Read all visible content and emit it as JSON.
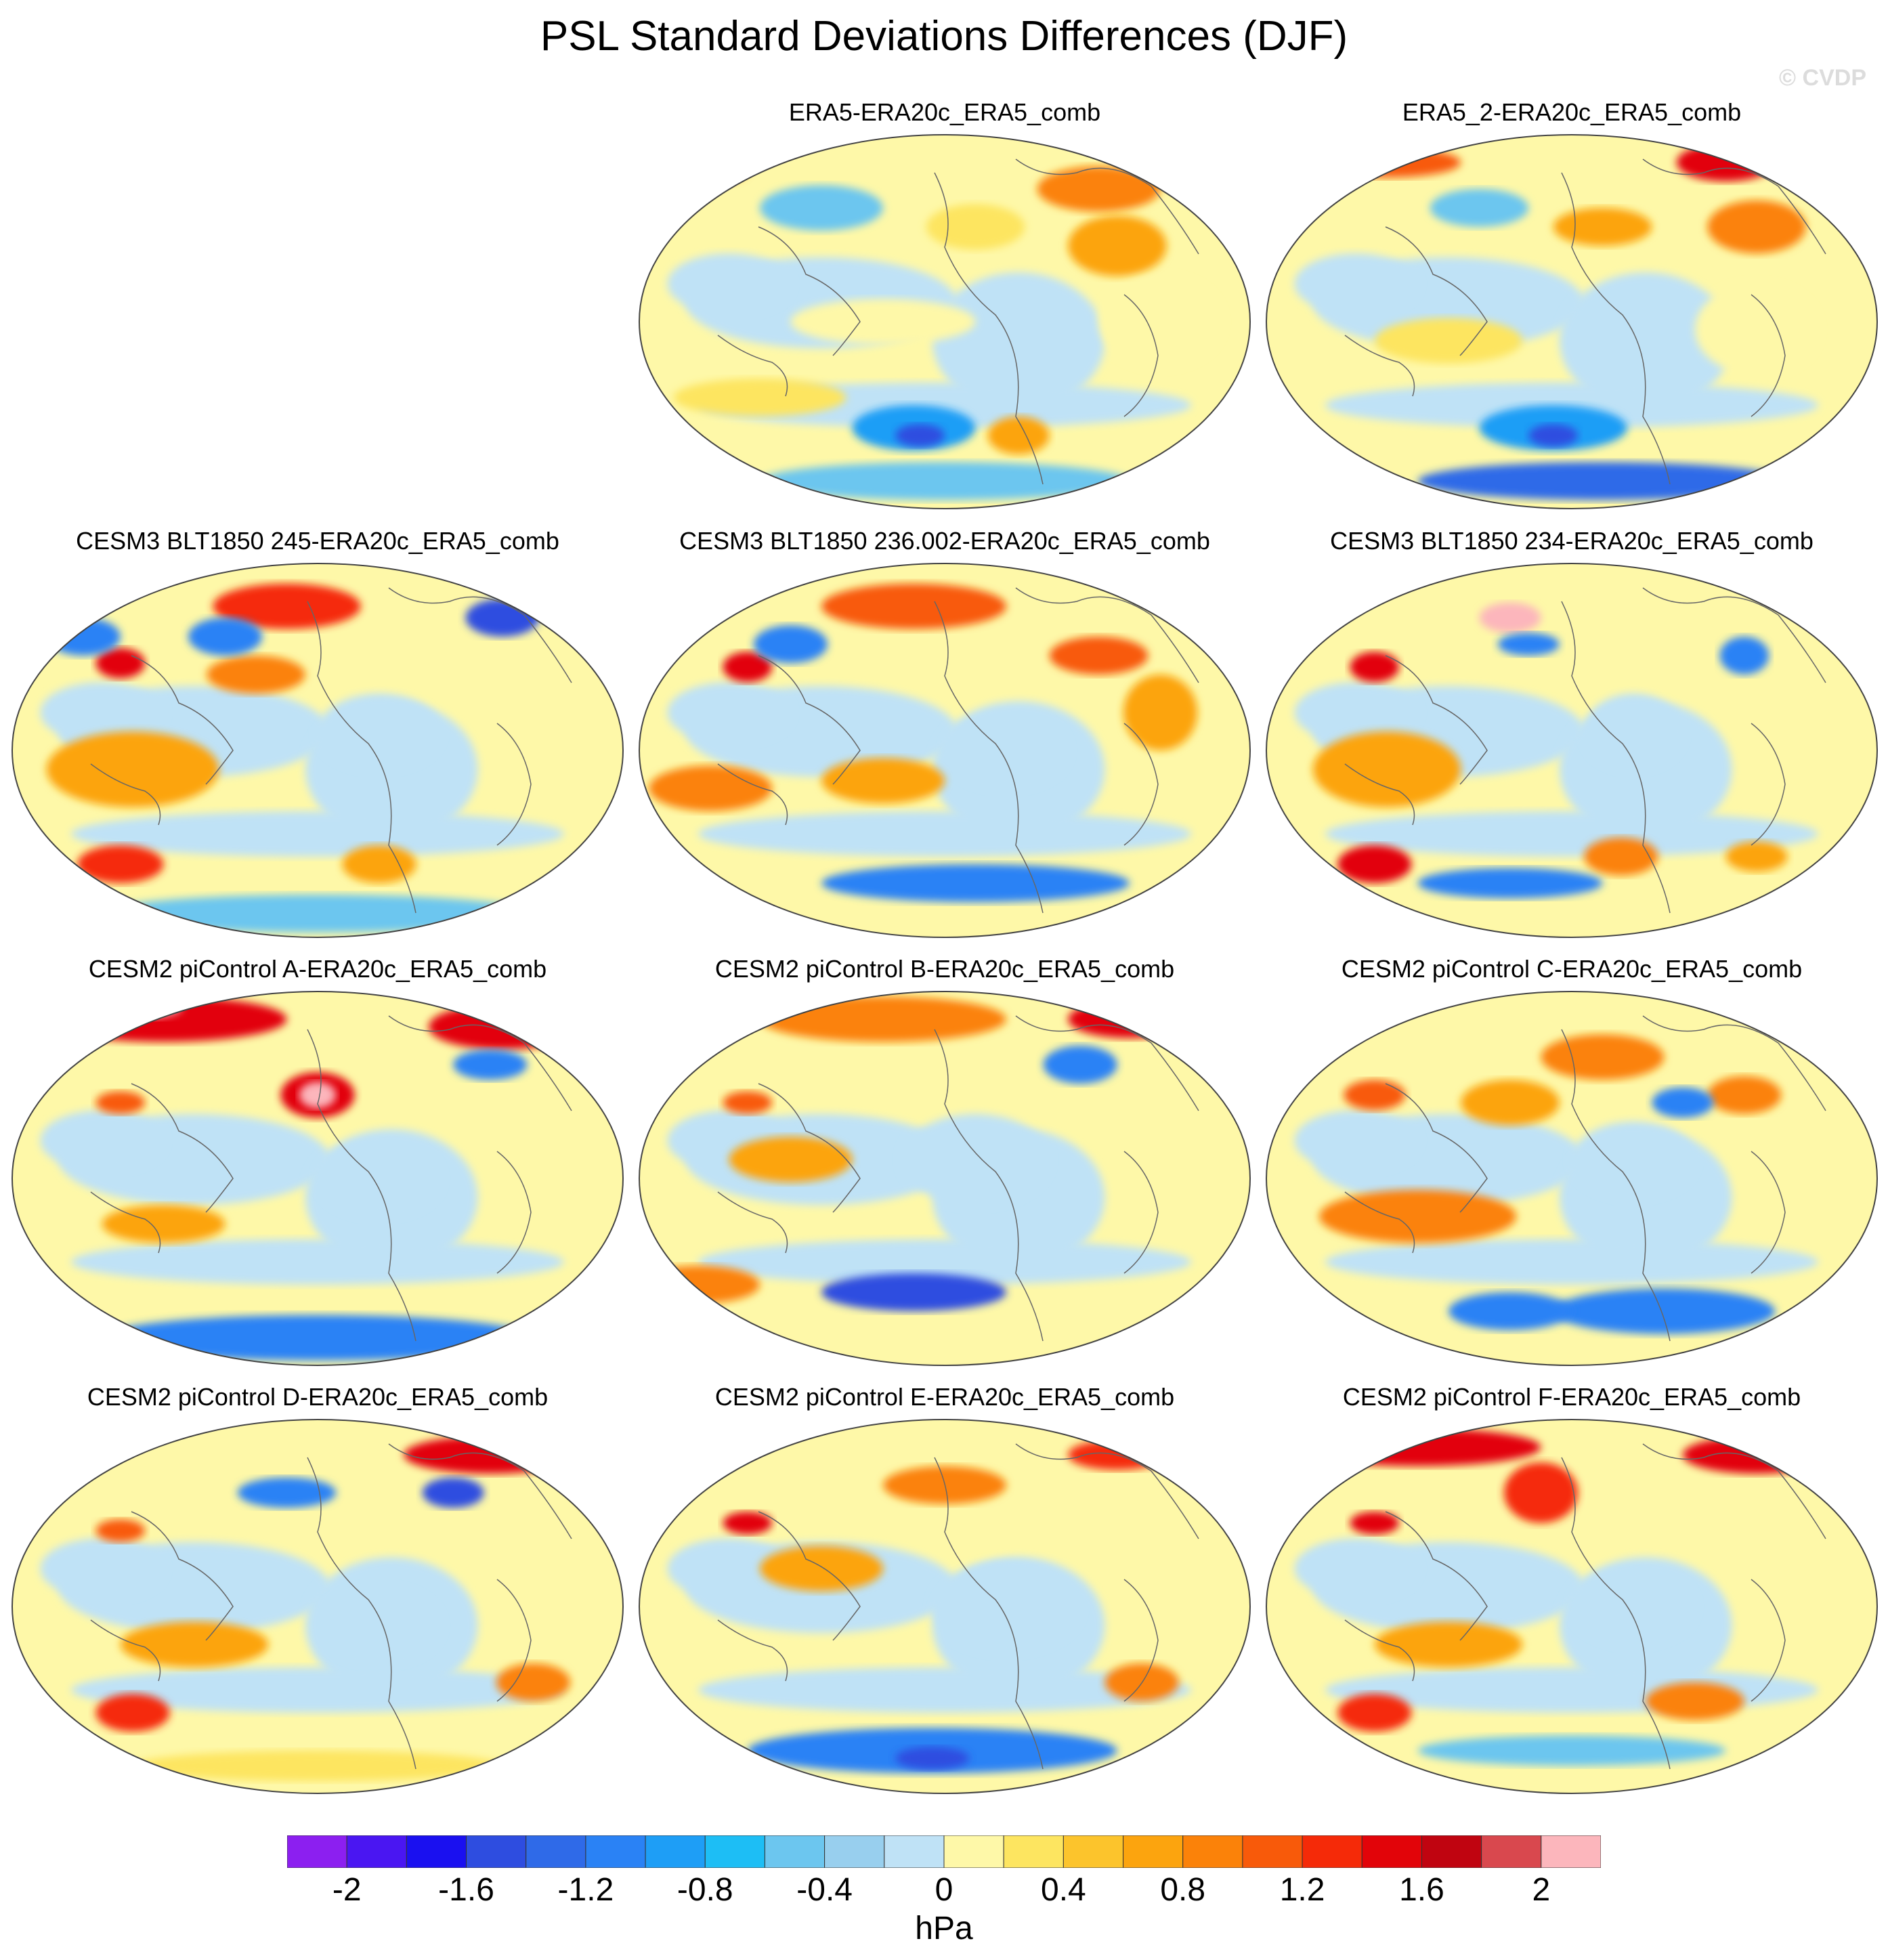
{
  "title": "PSL Standard Deviations Differences (DJF)",
  "watermark": "© CVDP",
  "colorbar": {
    "units": "hPa",
    "tick_labels": [
      "-2",
      "-1.6",
      "-1.2",
      "-0.8",
      "-0.4",
      "0",
      "0.4",
      "0.8",
      "1.2",
      "1.6",
      "2"
    ],
    "colors": [
      "#8c1ff0",
      "#4a16f2",
      "#1a10f0",
      "#2e4de0",
      "#2f6ae8",
      "#2a82f5",
      "#1e9ef6",
      "#1dbef5",
      "#6cc6ef",
      "#98cfee",
      "#bfe2f6",
      "#fef8a8",
      "#fde560",
      "#fcc42c",
      "#fca40e",
      "#fb8209",
      "#f85a0a",
      "#f52a08",
      "#e20409",
      "#c00410",
      "#d9484e",
      "#fcb6bc"
    ]
  },
  "panels": [
    {
      "id": "era5",
      "title": "ERA5-ERA20c_ERA5_comb",
      "blobs": [
        [
          0.75,
          0.15,
          0.1,
          0.06,
          "#fb8209"
        ],
        [
          0.78,
          0.3,
          0.08,
          0.08,
          "#fca40e"
        ],
        [
          0.55,
          0.25,
          0.08,
          0.06,
          "#fde560"
        ],
        [
          0.45,
          0.78,
          0.1,
          0.06,
          "#1e9ef6"
        ],
        [
          0.46,
          0.8,
          0.04,
          0.03,
          "#2e4de0"
        ],
        [
          0.62,
          0.8,
          0.05,
          0.05,
          "#fca40e"
        ],
        [
          0.2,
          0.7,
          0.14,
          0.05,
          "#fde560"
        ],
        [
          0.3,
          0.2,
          0.1,
          0.06,
          "#6cc6ef"
        ],
        [
          0.85,
          0.5,
          0.1,
          0.12,
          "#fef8a8"
        ],
        [
          0.1,
          0.1,
          0.08,
          0.04,
          "#fb8209"
        ],
        [
          0.5,
          0.92,
          0.3,
          0.05,
          "#6cc6ef"
        ],
        [
          0.4,
          0.5,
          0.15,
          0.06,
          "#fef8a8"
        ]
      ]
    },
    {
      "id": "era5-2",
      "title": "ERA5_2-ERA20c_ERA5_comb",
      "blobs": [
        [
          0.75,
          0.08,
          0.08,
          0.05,
          "#e20409"
        ],
        [
          0.8,
          0.25,
          0.08,
          0.07,
          "#fb8209"
        ],
        [
          0.2,
          0.08,
          0.12,
          0.04,
          "#f85a0a"
        ],
        [
          0.47,
          0.78,
          0.12,
          0.06,
          "#1e9ef6"
        ],
        [
          0.47,
          0.8,
          0.04,
          0.03,
          "#2e4de0"
        ],
        [
          0.55,
          0.25,
          0.08,
          0.05,
          "#fca40e"
        ],
        [
          0.3,
          0.55,
          0.12,
          0.06,
          "#fde560"
        ],
        [
          0.8,
          0.52,
          0.1,
          0.12,
          "#fef8a8"
        ],
        [
          0.35,
          0.2,
          0.08,
          0.05,
          "#6cc6ef"
        ],
        [
          0.55,
          0.92,
          0.3,
          0.05,
          "#2f6ae8"
        ]
      ]
    },
    {
      "id": "cesm3-245",
      "title": "CESM3 BLT1850 245-ERA20c_ERA5_comb",
      "blobs": [
        [
          0.45,
          0.12,
          0.12,
          0.06,
          "#f52a08"
        ],
        [
          0.8,
          0.15,
          0.06,
          0.05,
          "#2e4de0"
        ],
        [
          0.18,
          0.27,
          0.04,
          0.04,
          "#e20409"
        ],
        [
          0.4,
          0.3,
          0.08,
          0.05,
          "#fb8209"
        ],
        [
          0.2,
          0.55,
          0.14,
          0.1,
          "#fca40e"
        ],
        [
          0.18,
          0.8,
          0.07,
          0.05,
          "#f52a08"
        ],
        [
          0.6,
          0.8,
          0.06,
          0.05,
          "#fca40e"
        ],
        [
          0.5,
          0.93,
          0.35,
          0.05,
          "#6cc6ef"
        ],
        [
          0.6,
          0.45,
          0.1,
          0.1,
          "#bfe2f6"
        ],
        [
          0.12,
          0.2,
          0.06,
          0.05,
          "#2a82f5"
        ],
        [
          0.35,
          0.2,
          0.06,
          0.05,
          "#2a82f5"
        ]
      ]
    },
    {
      "id": "cesm3-236",
      "title": "CESM3 BLT1850 236.002-ERA20c_ERA5_comb",
      "blobs": [
        [
          0.45,
          0.12,
          0.15,
          0.06,
          "#f85a0a"
        ],
        [
          0.75,
          0.25,
          0.08,
          0.05,
          "#f85a0a"
        ],
        [
          0.18,
          0.28,
          0.04,
          0.04,
          "#e20409"
        ],
        [
          0.12,
          0.6,
          0.1,
          0.06,
          "#fb8209"
        ],
        [
          0.4,
          0.58,
          0.1,
          0.06,
          "#fca40e"
        ],
        [
          0.6,
          0.5,
          0.1,
          0.1,
          "#bfe2f6"
        ],
        [
          0.55,
          0.85,
          0.25,
          0.05,
          "#2a82f5"
        ],
        [
          0.25,
          0.22,
          0.06,
          0.05,
          "#2a82f5"
        ],
        [
          0.85,
          0.4,
          0.06,
          0.1,
          "#fca40e"
        ]
      ]
    },
    {
      "id": "cesm3-234",
      "title": "CESM3 BLT1850 234-ERA20c_ERA5_comb",
      "blobs": [
        [
          0.4,
          0.15,
          0.05,
          0.04,
          "#fcb6bc"
        ],
        [
          0.43,
          0.22,
          0.05,
          0.03,
          "#2a82f5"
        ],
        [
          0.18,
          0.28,
          0.04,
          0.04,
          "#e20409"
        ],
        [
          0.18,
          0.8,
          0.06,
          0.05,
          "#e20409"
        ],
        [
          0.58,
          0.78,
          0.06,
          0.05,
          "#fb8209"
        ],
        [
          0.8,
          0.78,
          0.05,
          0.04,
          "#fca40e"
        ],
        [
          0.2,
          0.55,
          0.12,
          0.1,
          "#fca40e"
        ],
        [
          0.4,
          0.85,
          0.15,
          0.04,
          "#2a82f5"
        ],
        [
          0.78,
          0.25,
          0.04,
          0.05,
          "#2a82f5"
        ],
        [
          0.6,
          0.45,
          0.08,
          0.1,
          "#bfe2f6"
        ]
      ]
    },
    {
      "id": "cesm2-a",
      "title": "CESM2 piControl A-ERA20c_ERA5_comb",
      "blobs": [
        [
          0.25,
          0.08,
          0.2,
          0.06,
          "#e20409"
        ],
        [
          0.2,
          0.05,
          0.08,
          0.03,
          "#fcb6bc"
        ],
        [
          0.5,
          0.28,
          0.06,
          0.06,
          "#e20409"
        ],
        [
          0.5,
          0.28,
          0.03,
          0.035,
          "#fcb6bc"
        ],
        [
          0.8,
          0.1,
          0.12,
          0.06,
          "#e20409"
        ],
        [
          0.78,
          0.2,
          0.06,
          0.04,
          "#2a82f5"
        ],
        [
          0.18,
          0.3,
          0.04,
          0.03,
          "#f85a0a"
        ],
        [
          0.5,
          0.92,
          0.35,
          0.06,
          "#2a82f5"
        ],
        [
          0.25,
          0.62,
          0.1,
          0.05,
          "#fca40e"
        ],
        [
          0.6,
          0.5,
          0.1,
          0.1,
          "#bfe2f6"
        ]
      ]
    },
    {
      "id": "cesm2-b",
      "title": "CESM2 piControl B-ERA20c_ERA5_comb",
      "blobs": [
        [
          0.4,
          0.08,
          0.2,
          0.06,
          "#fb8209"
        ],
        [
          0.8,
          0.08,
          0.1,
          0.05,
          "#e20409"
        ],
        [
          0.88,
          0.08,
          0.04,
          0.03,
          "#fcb6bc"
        ],
        [
          0.72,
          0.2,
          0.06,
          0.05,
          "#2a82f5"
        ],
        [
          0.18,
          0.3,
          0.04,
          0.03,
          "#f85a0a"
        ],
        [
          0.1,
          0.78,
          0.1,
          0.05,
          "#fb8209"
        ],
        [
          0.45,
          0.8,
          0.15,
          0.05,
          "#2e4de0"
        ],
        [
          0.55,
          0.45,
          0.12,
          0.12,
          "#bfe2f6"
        ],
        [
          0.25,
          0.45,
          0.1,
          0.06,
          "#fca40e"
        ]
      ]
    },
    {
      "id": "cesm2-c",
      "title": "CESM2 piControl C-ERA20c_ERA5_comb",
      "blobs": [
        [
          0.55,
          0.18,
          0.1,
          0.06,
          "#fb8209"
        ],
        [
          0.78,
          0.28,
          0.06,
          0.05,
          "#fb8209"
        ],
        [
          0.18,
          0.28,
          0.05,
          0.04,
          "#f85a0a"
        ],
        [
          0.25,
          0.6,
          0.16,
          0.07,
          "#fb8209"
        ],
        [
          0.65,
          0.85,
          0.18,
          0.06,
          "#2a82f5"
        ],
        [
          0.4,
          0.85,
          0.1,
          0.05,
          "#2a82f5"
        ],
        [
          0.6,
          0.45,
          0.1,
          0.1,
          "#bfe2f6"
        ],
        [
          0.4,
          0.3,
          0.08,
          0.06,
          "#fca40e"
        ],
        [
          0.68,
          0.3,
          0.05,
          0.04,
          "#2a82f5"
        ]
      ]
    },
    {
      "id": "cesm2-d",
      "title": "CESM2 piControl D-ERA20c_ERA5_comb",
      "blobs": [
        [
          0.78,
          0.1,
          0.14,
          0.05,
          "#e20409"
        ],
        [
          0.72,
          0.2,
          0.05,
          0.04,
          "#2e4de0"
        ],
        [
          0.45,
          0.2,
          0.08,
          0.04,
          "#2a82f5"
        ],
        [
          0.18,
          0.3,
          0.04,
          0.03,
          "#f85a0a"
        ],
        [
          0.2,
          0.78,
          0.06,
          0.05,
          "#f52a08"
        ],
        [
          0.6,
          0.55,
          0.1,
          0.1,
          "#bfe2f6"
        ],
        [
          0.3,
          0.6,
          0.12,
          0.06,
          "#fca40e"
        ],
        [
          0.85,
          0.7,
          0.06,
          0.05,
          "#fb8209"
        ],
        [
          0.5,
          0.92,
          0.3,
          0.04,
          "#fde560"
        ]
      ]
    },
    {
      "id": "cesm2-e",
      "title": "CESM2 piControl E-ERA20c_ERA5_comb",
      "blobs": [
        [
          0.5,
          0.18,
          0.1,
          0.05,
          "#fb8209"
        ],
        [
          0.78,
          0.1,
          0.08,
          0.04,
          "#f52a08"
        ],
        [
          0.18,
          0.28,
          0.04,
          0.03,
          "#e20409"
        ],
        [
          0.48,
          0.88,
          0.3,
          0.06,
          "#2a82f5"
        ],
        [
          0.48,
          0.9,
          0.06,
          0.03,
          "#2e4de0"
        ],
        [
          0.6,
          0.5,
          0.12,
          0.12,
          "#bfe2f6"
        ],
        [
          0.3,
          0.4,
          0.1,
          0.06,
          "#fca40e"
        ],
        [
          0.82,
          0.7,
          0.06,
          0.05,
          "#fb8209"
        ]
      ]
    },
    {
      "id": "cesm2-f",
      "title": "CESM2 piControl F-ERA20c_ERA5_comb",
      "blobs": [
        [
          0.25,
          0.08,
          0.2,
          0.05,
          "#e20409"
        ],
        [
          0.45,
          0.2,
          0.06,
          0.08,
          "#f52a08"
        ],
        [
          0.8,
          0.1,
          0.12,
          0.05,
          "#e20409"
        ],
        [
          0.86,
          0.08,
          0.04,
          0.02,
          "#fcb6bc"
        ],
        [
          0.12,
          0.06,
          0.04,
          0.02,
          "#fcb6bc"
        ],
        [
          0.18,
          0.28,
          0.04,
          0.03,
          "#e20409"
        ],
        [
          0.18,
          0.78,
          0.06,
          0.05,
          "#f52a08"
        ],
        [
          0.7,
          0.75,
          0.08,
          0.05,
          "#fb8209"
        ],
        [
          0.3,
          0.6,
          0.12,
          0.06,
          "#fca40e"
        ],
        [
          0.6,
          0.5,
          0.1,
          0.1,
          "#bfe2f6"
        ],
        [
          0.5,
          0.88,
          0.25,
          0.04,
          "#6cc6ef"
        ]
      ]
    }
  ]
}
